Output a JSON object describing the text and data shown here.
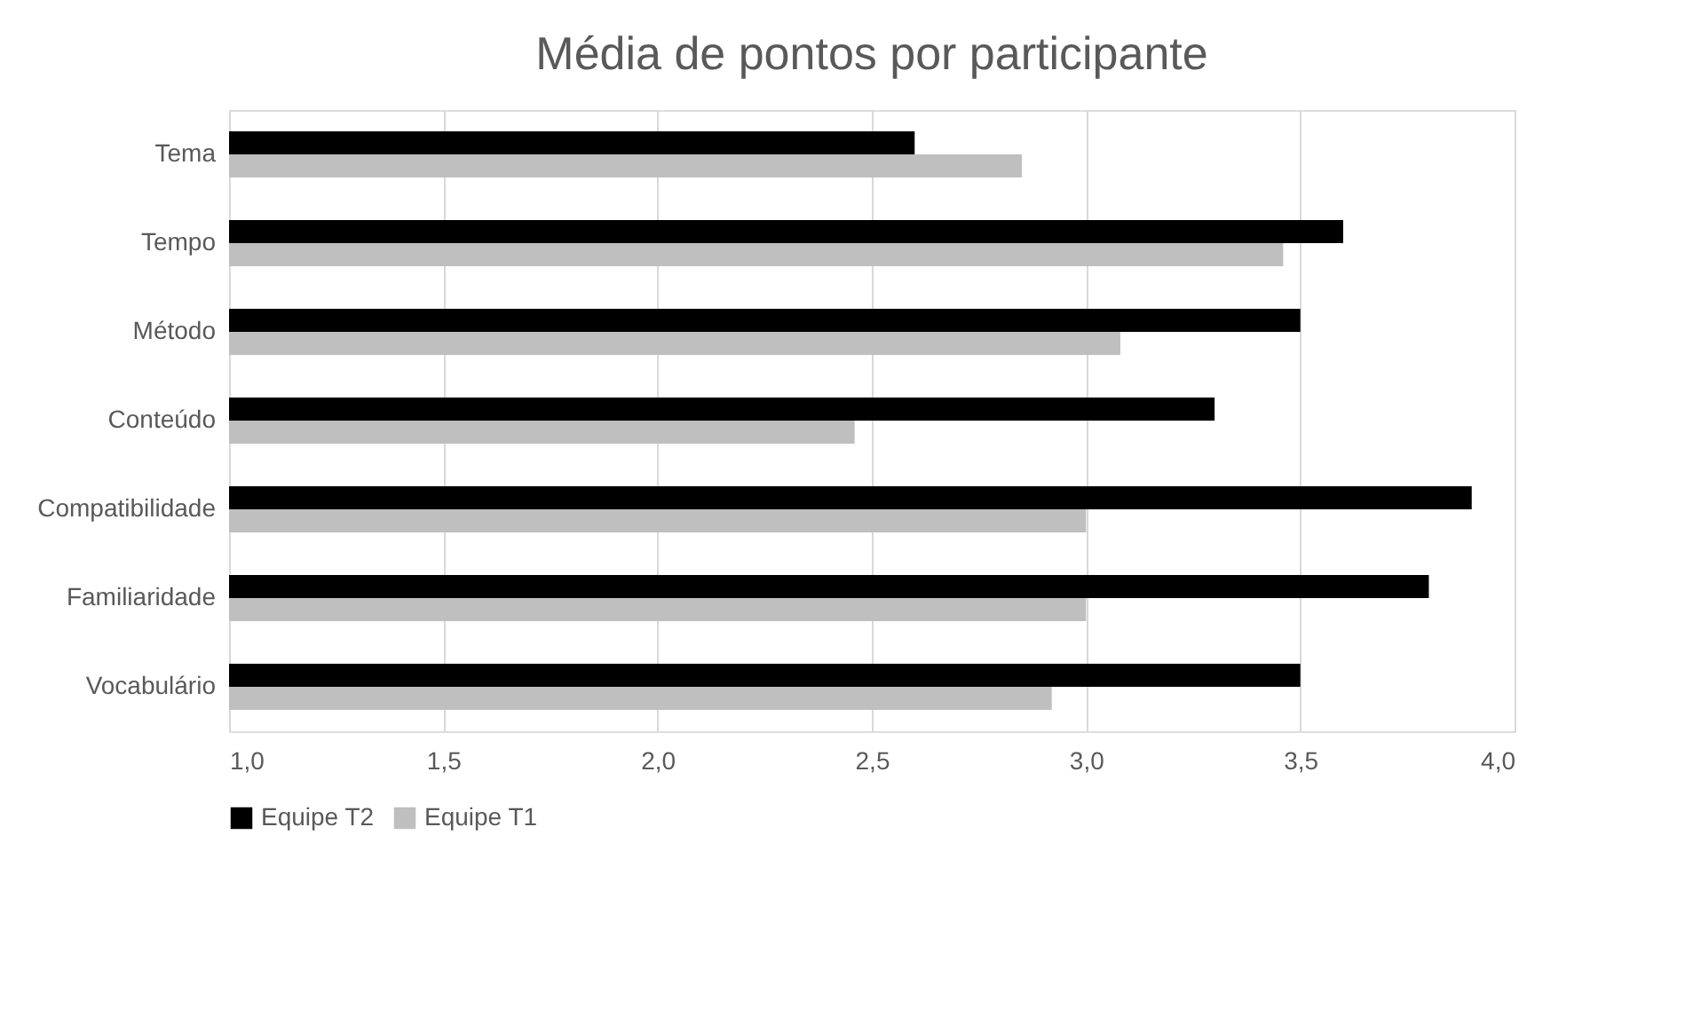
{
  "chart_data": {
    "type": "bar",
    "orientation": "horizontal",
    "title": "Média de pontos por participante",
    "categories": [
      "Tema",
      "Tempo",
      "Método",
      "Conteúdo",
      "Compatibilidade",
      "Familiaridade",
      "Vocabulário"
    ],
    "series": [
      {
        "name": "Equipe T2",
        "color": "#000000",
        "values": [
          2.6,
          3.6,
          3.5,
          3.3,
          3.9,
          3.8,
          3.5
        ]
      },
      {
        "name": "Equipe T1",
        "color": "#bfbfbf",
        "values": [
          2.85,
          3.46,
          3.08,
          2.46,
          3.0,
          3.0,
          2.92
        ]
      }
    ],
    "xlim": [
      1.0,
      4.0
    ],
    "xticks": [
      {
        "value": 1.0,
        "label": "1,0"
      },
      {
        "value": 1.5,
        "label": "1,5"
      },
      {
        "value": 2.0,
        "label": "2,0"
      },
      {
        "value": 2.5,
        "label": "2,5"
      },
      {
        "value": 3.0,
        "label": "3,0"
      },
      {
        "value": 3.5,
        "label": "3,5"
      },
      {
        "value": 4.0,
        "label": "4,0"
      }
    ],
    "grid": "x",
    "legend": "bottom"
  }
}
